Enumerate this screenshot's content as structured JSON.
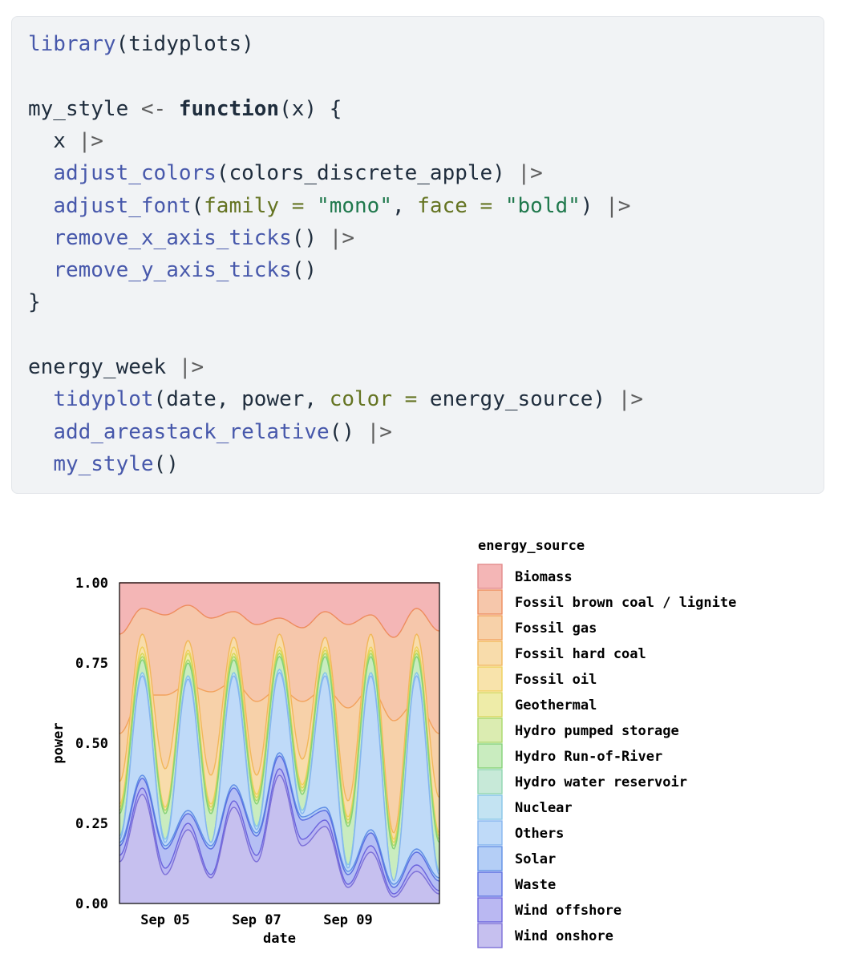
{
  "code": {
    "lines": [
      [
        {
          "t": "library",
          "k": "fn"
        },
        {
          "t": "(tidyplots)",
          "k": "plain"
        }
      ],
      [],
      [
        {
          "t": "my_style ",
          "k": "plain"
        },
        {
          "t": "<-",
          "k": "op"
        },
        {
          "t": " ",
          "k": "plain"
        },
        {
          "t": "function",
          "k": "kw"
        },
        {
          "t": "(x) {",
          "k": "plain"
        }
      ],
      [
        {
          "t": "  x ",
          "k": "plain"
        },
        {
          "t": "|>",
          "k": "op"
        }
      ],
      [
        {
          "t": "  ",
          "k": "plain"
        },
        {
          "t": "adjust_colors",
          "k": "fn"
        },
        {
          "t": "(colors_discrete_apple) ",
          "k": "plain"
        },
        {
          "t": "|>",
          "k": "op"
        }
      ],
      [
        {
          "t": "  ",
          "k": "plain"
        },
        {
          "t": "adjust_font",
          "k": "fn"
        },
        {
          "t": "(",
          "k": "plain"
        },
        {
          "t": "family =",
          "k": "arg"
        },
        {
          "t": " ",
          "k": "plain"
        },
        {
          "t": "\"mono\"",
          "k": "str"
        },
        {
          "t": ", ",
          "k": "plain"
        },
        {
          "t": "face =",
          "k": "arg"
        },
        {
          "t": " ",
          "k": "plain"
        },
        {
          "t": "\"bold\"",
          "k": "str"
        },
        {
          "t": ") ",
          "k": "plain"
        },
        {
          "t": "|>",
          "k": "op"
        }
      ],
      [
        {
          "t": "  ",
          "k": "plain"
        },
        {
          "t": "remove_x_axis_ticks",
          "k": "fn"
        },
        {
          "t": "() ",
          "k": "plain"
        },
        {
          "t": "|>",
          "k": "op"
        }
      ],
      [
        {
          "t": "  ",
          "k": "plain"
        },
        {
          "t": "remove_y_axis_ticks",
          "k": "fn"
        },
        {
          "t": "()",
          "k": "plain"
        }
      ],
      [
        {
          "t": "}",
          "k": "plain"
        }
      ],
      [],
      [
        {
          "t": "energy_week ",
          "k": "plain"
        },
        {
          "t": "|>",
          "k": "op"
        }
      ],
      [
        {
          "t": "  ",
          "k": "plain"
        },
        {
          "t": "tidyplot",
          "k": "fn"
        },
        {
          "t": "(date, power, ",
          "k": "plain"
        },
        {
          "t": "color =",
          "k": "arg"
        },
        {
          "t": " energy_source) ",
          "k": "plain"
        },
        {
          "t": "|>",
          "k": "op"
        }
      ],
      [
        {
          "t": "  ",
          "k": "plain"
        },
        {
          "t": "add_areastack_relative",
          "k": "fn"
        },
        {
          "t": "() ",
          "k": "plain"
        },
        {
          "t": "|>",
          "k": "op"
        }
      ],
      [
        {
          "t": "  ",
          "k": "plain"
        },
        {
          "t": "my_style",
          "k": "fn"
        },
        {
          "t": "()",
          "k": "plain"
        }
      ]
    ]
  },
  "chart_data": {
    "type": "area",
    "stacked": "relative",
    "xlabel": "date",
    "ylabel": "power",
    "x_start": "Sep 04 00:00",
    "x_end": "Sep 11 00:00",
    "x_ticks": [
      {
        "label": "Sep 05",
        "day": 5
      },
      {
        "label": "Sep 07",
        "day": 7
      },
      {
        "label": "Sep 09",
        "day": 9
      }
    ],
    "y_ticks": [
      "0.00",
      "0.25",
      "0.50",
      "0.75",
      "1.00"
    ],
    "ylim": [
      0,
      1
    ],
    "legend_title": "energy_source",
    "legend_position": "right",
    "boundary_x": [
      "Sep 04 00:00",
      "Sep 04 12:00",
      "Sep 05 00:00",
      "Sep 05 12:00",
      "Sep 06 00:00",
      "Sep 06 12:00",
      "Sep 07 00:00",
      "Sep 07 12:00",
      "Sep 08 00:00",
      "Sep 08 12:00",
      "Sep 09 00:00",
      "Sep 09 12:00",
      "Sep 10 00:00",
      "Sep 10 12:00",
      "Sep 11 00:00"
    ],
    "series": [
      {
        "name": "Biomass",
        "color": "#f4b6b6",
        "top": [
          1,
          1,
          1,
          1,
          1,
          1,
          1,
          1,
          1,
          1,
          1,
          1,
          1,
          1,
          1
        ]
      },
      {
        "name": "Fossil brown coal / lignite",
        "color": "#f6c7ab",
        "top": [
          0.84,
          0.92,
          0.9,
          0.93,
          0.89,
          0.91,
          0.87,
          0.89,
          0.86,
          0.91,
          0.87,
          0.9,
          0.83,
          0.92,
          0.85
        ]
      },
      {
        "name": "Fossil gas",
        "color": "#f7d1a9",
        "top": [
          0.53,
          0.65,
          0.65,
          0.68,
          0.66,
          0.69,
          0.63,
          0.67,
          0.63,
          0.67,
          0.61,
          0.67,
          0.57,
          0.63,
          0.53
        ]
      },
      {
        "name": "Fossil hard coal",
        "color": "#f8dcab",
        "top": [
          0.38,
          0.84,
          0.42,
          0.82,
          0.4,
          0.83,
          0.4,
          0.84,
          0.45,
          0.83,
          0.32,
          0.84,
          0.22,
          0.84,
          0.33
        ]
      },
      {
        "name": "Fossil oil",
        "color": "#f8e3ab",
        "top": [
          0.31,
          0.8,
          0.3,
          0.79,
          0.31,
          0.8,
          0.34,
          0.8,
          0.37,
          0.8,
          0.27,
          0.8,
          0.2,
          0.8,
          0.22
        ]
      },
      {
        "name": "Geothermal",
        "color": "#eeeca8",
        "top": [
          0.3,
          0.78,
          0.29,
          0.78,
          0.3,
          0.78,
          0.33,
          0.79,
          0.36,
          0.79,
          0.26,
          0.79,
          0.19,
          0.79,
          0.21
        ]
      },
      {
        "name": "Hydro pumped storage",
        "color": "#dbecb1",
        "top": [
          0.29,
          0.77,
          0.29,
          0.76,
          0.29,
          0.77,
          0.32,
          0.78,
          0.35,
          0.78,
          0.25,
          0.78,
          0.18,
          0.78,
          0.2
        ]
      },
      {
        "name": "Hydro Run-of-River",
        "color": "#c9ecbf",
        "top": [
          0.28,
          0.76,
          0.28,
          0.75,
          0.28,
          0.76,
          0.31,
          0.77,
          0.34,
          0.77,
          0.24,
          0.77,
          0.17,
          0.77,
          0.19
        ]
      },
      {
        "name": "Hydro water reservoir",
        "color": "#c7e9d8",
        "top": [
          0.21,
          0.72,
          0.2,
          0.71,
          0.19,
          0.72,
          0.24,
          0.73,
          0.29,
          0.72,
          0.12,
          0.72,
          0.07,
          0.72,
          0.1
        ]
      },
      {
        "name": "Nuclear",
        "color": "#c3e3f2",
        "top": [
          0.21,
          0.72,
          0.2,
          0.71,
          0.19,
          0.72,
          0.24,
          0.73,
          0.29,
          0.72,
          0.12,
          0.72,
          0.07,
          0.72,
          0.1
        ]
      },
      {
        "name": "Others",
        "color": "#bfdaf8",
        "top": [
          0.2,
          0.71,
          0.19,
          0.7,
          0.19,
          0.71,
          0.23,
          0.72,
          0.28,
          0.71,
          0.11,
          0.71,
          0.07,
          0.71,
          0.09
        ]
      },
      {
        "name": "Solar",
        "color": "#b4cef6",
        "top": [
          0.19,
          0.4,
          0.18,
          0.29,
          0.18,
          0.37,
          0.22,
          0.47,
          0.27,
          0.3,
          0.1,
          0.23,
          0.06,
          0.17,
          0.08
        ]
      },
      {
        "name": "Waste",
        "color": "#b5bff4",
        "top": [
          0.18,
          0.39,
          0.17,
          0.28,
          0.17,
          0.36,
          0.21,
          0.46,
          0.26,
          0.29,
          0.09,
          0.22,
          0.05,
          0.16,
          0.07
        ]
      },
      {
        "name": "Wind offshore",
        "color": "#bab8f2",
        "top": [
          0.15,
          0.36,
          0.11,
          0.25,
          0.09,
          0.32,
          0.15,
          0.42,
          0.2,
          0.26,
          0.06,
          0.18,
          0.03,
          0.12,
          0.04
        ]
      },
      {
        "name": "Wind onshore",
        "color": "#c6c0ef",
        "top": [
          0.13,
          0.34,
          0.09,
          0.23,
          0.08,
          0.3,
          0.13,
          0.4,
          0.18,
          0.24,
          0.05,
          0.16,
          0.02,
          0.1,
          0.03
        ]
      }
    ],
    "stroke_colors": [
      "#e38a8a",
      "#ee8c5e",
      "#f2a25c",
      "#f2b75a",
      "#efd05b",
      "#d6d65a",
      "#a9d86a",
      "#85d278",
      "#8fd5b0",
      "#87c6e8",
      "#86b5ef",
      "#5f8fe6",
      "#5a6ee0",
      "#6a63dd",
      "#7c6fd8"
    ]
  }
}
